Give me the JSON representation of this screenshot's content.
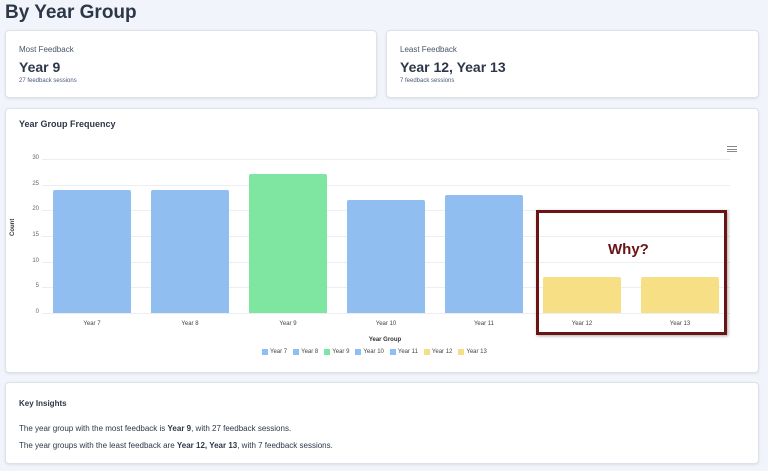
{
  "page": {
    "title": "By Year Group"
  },
  "most_feedback": {
    "label": "Most Feedback",
    "value": "Year 9",
    "sub": "27 feedback sessions"
  },
  "least_feedback": {
    "label": "Least Feedback",
    "value": "Year 12, Year 13",
    "sub": "7 feedback sessions"
  },
  "chart_card": {
    "title": "Year Group Frequency",
    "menu_icon": "hamburger-menu-icon",
    "annotation": "Why?",
    "annotation_color": "#6b1414"
  },
  "chart_data": {
    "type": "bar",
    "title": "Year Group Frequency",
    "xlabel": "Year Group",
    "ylabel": "Count",
    "ylim": [
      0,
      30
    ],
    "yticks": [
      "0",
      "5",
      "10",
      "15",
      "20",
      "25",
      "30"
    ],
    "categories": [
      "Year 7",
      "Year 8",
      "Year 9",
      "Year 10",
      "Year 11",
      "Year 12",
      "Year 13"
    ],
    "values": [
      24,
      24,
      27,
      22,
      23,
      7,
      7
    ],
    "colors": [
      "#90bef0",
      "#90bef0",
      "#7ee6a0",
      "#90bef0",
      "#90bef0",
      "#f7df85",
      "#f7df85"
    ],
    "legend": [
      "Year 7",
      "Year 8",
      "Year 9",
      "Year 10",
      "Year 11",
      "Year 12",
      "Year 13"
    ],
    "legend_position": "bottom",
    "grid": true,
    "annotation": {
      "text": "Why?",
      "target": [
        "Year 12",
        "Year 13"
      ]
    }
  },
  "insights": {
    "title": "Key Insights",
    "line1": {
      "pre": "The year group with the most feedback is ",
      "bold": "Year 9",
      "post": ", with 27 feedback sessions."
    },
    "line2": {
      "pre": "The year groups with the least feedback are ",
      "bold": "Year 12, Year 13",
      "post": ", with 7 feedback sessions."
    }
  }
}
